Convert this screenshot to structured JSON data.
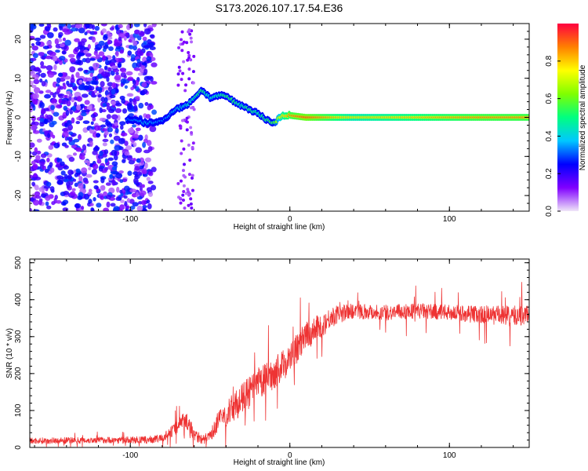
{
  "title": "S173.2026.107.17.54.E36",
  "chart_data": [
    {
      "type": "heatmap",
      "title": "S173.2026.107.17.54.E36",
      "xlabel": "Height of straight line (km)",
      "ylabel": "Frequency (Hz)",
      "xlim": [
        -163,
        150
      ],
      "ylim": [
        -24,
        24
      ],
      "x_ticks": [
        -100,
        0,
        100
      ],
      "x_tick_labels": [
        "-100",
        "0",
        "100"
      ],
      "y_ticks": [
        -20,
        -10,
        0,
        10,
        20
      ],
      "y_tick_labels": [
        "-20",
        "-10",
        "0",
        "10",
        "20"
      ],
      "colorbar": {
        "label": "Normalized spectral amplitude",
        "range": [
          0,
          1
        ],
        "ticks": [
          0.0,
          0.2,
          0.4,
          0.6,
          0.8
        ],
        "tick_labels": [
          "0.0",
          "0.2",
          "0.4",
          "0.6",
          "0.8"
        ],
        "colormap": [
          "#f0e6f8",
          "#8000ff",
          "#0000ff",
          "#00c8ff",
          "#00ff80",
          "#80ff00",
          "#ffff00",
          "#ff8000",
          "#ff0040"
        ]
      },
      "ridge": {
        "x": [
          -100,
          -90,
          -80,
          -72,
          -65,
          -60,
          -55,
          -50,
          -45,
          -40,
          -35,
          -30,
          -25,
          -20,
          -15,
          -10,
          -5,
          0,
          10,
          20,
          40,
          80,
          120,
          150
        ],
        "freq": [
          -0.5,
          -1.5,
          -1.0,
          2.0,
          3.0,
          5.0,
          7.0,
          5.0,
          5.5,
          5.5,
          4.0,
          3.0,
          2.0,
          1.0,
          -0.5,
          -1.5,
          0.5,
          0.5,
          0.0,
          0.0,
          0.0,
          0.0,
          0.0,
          0.0
        ],
        "amplitude": [
          0.35,
          0.4,
          0.35,
          0.4,
          0.45,
          0.5,
          0.55,
          0.45,
          0.5,
          0.55,
          0.55,
          0.5,
          0.55,
          0.5,
          0.55,
          0.6,
          0.8,
          0.9,
          0.95,
          0.9,
          0.8,
          0.85,
          0.9,
          0.9
        ]
      },
      "noise_region_x": [
        -163,
        -85
      ]
    },
    {
      "type": "line",
      "xlabel": "Height of straight line (km)",
      "ylabel": "SNR (10 * v/v)",
      "xlim": [
        -163,
        150
      ],
      "ylim": [
        0,
        510
      ],
      "x_ticks": [
        -100,
        0,
        100
      ],
      "x_tick_labels": [
        "-100",
        "0",
        "100"
      ],
      "y_ticks": [
        0,
        100,
        200,
        300,
        400,
        500
      ],
      "y_tick_labels": [
        "0",
        "100",
        "200",
        "300",
        "400",
        "500"
      ],
      "series": [
        {
          "name": "SNR",
          "color": "#ee3333",
          "trend_x": [
            -163,
            -120,
            -90,
            -80,
            -72,
            -66,
            -60,
            -55,
            -50,
            -45,
            -40,
            -30,
            -20,
            -10,
            0,
            10,
            20,
            25,
            30,
            40,
            60,
            80,
            100,
            120,
            140,
            150
          ],
          "trend_y": [
            18,
            20,
            20,
            25,
            50,
            80,
            40,
            20,
            30,
            70,
            90,
            130,
            170,
            200,
            240,
            300,
            330,
            350,
            360,
            370,
            365,
            370,
            365,
            360,
            355,
            360
          ],
          "spread_y": [
            12,
            12,
            14,
            15,
            25,
            30,
            30,
            18,
            20,
            40,
            50,
            60,
            65,
            60,
            60,
            55,
            50,
            40,
            35,
            30,
            30,
            30,
            30,
            35,
            40,
            40
          ]
        }
      ]
    }
  ]
}
